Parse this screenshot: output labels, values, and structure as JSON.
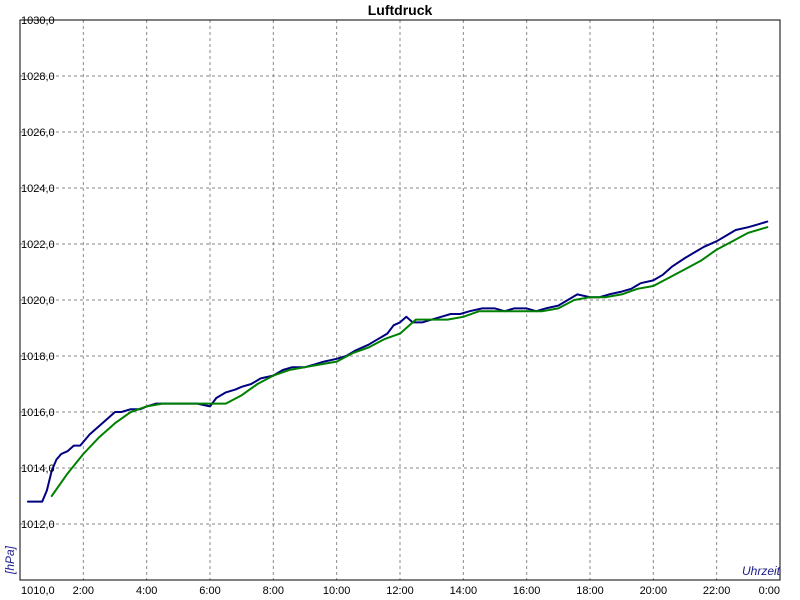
{
  "chart_data": {
    "type": "line",
    "title": "Luftdruck",
    "xlabel": "Uhrzeit",
    "ylabel": "[hPa]",
    "x_unit": "hours",
    "xlim": [
      0,
      24
    ],
    "ylim": [
      1010,
      1030
    ],
    "grid": true,
    "grid_style": "dashed",
    "x_ticks": [
      {
        "value": 2,
        "label": "2:00"
      },
      {
        "value": 4,
        "label": "4:00"
      },
      {
        "value": 6,
        "label": "6:00"
      },
      {
        "value": 8,
        "label": "8:00"
      },
      {
        "value": 10,
        "label": "10:00"
      },
      {
        "value": 12,
        "label": "12:00"
      },
      {
        "value": 14,
        "label": "14:00"
      },
      {
        "value": 16,
        "label": "16:00"
      },
      {
        "value": 18,
        "label": "18:00"
      },
      {
        "value": 20,
        "label": "20:00"
      },
      {
        "value": 22,
        "label": "22:00"
      },
      {
        "value": 24,
        "label": "0:00"
      }
    ],
    "y_ticks": [
      {
        "value": 1010,
        "label": "1010,0"
      },
      {
        "value": 1012,
        "label": "1012,0"
      },
      {
        "value": 1014,
        "label": "1014,0"
      },
      {
        "value": 1016,
        "label": "1016,0"
      },
      {
        "value": 1018,
        "label": "1018,0"
      },
      {
        "value": 1020,
        "label": "1020,0"
      },
      {
        "value": 1022,
        "label": "1022,0"
      },
      {
        "value": 1024,
        "label": "1024,0"
      },
      {
        "value": 1026,
        "label": "1026,0"
      },
      {
        "value": 1028,
        "label": "1028,0"
      },
      {
        "value": 1030,
        "label": "1030,0"
      }
    ],
    "series": [
      {
        "color": "#000080",
        "x": [
          0.25,
          0.7,
          0.85,
          1.0,
          1.15,
          1.3,
          1.5,
          1.7,
          1.9,
          2.2,
          2.5,
          2.8,
          3.0,
          3.2,
          3.5,
          3.8,
          4.0,
          4.3,
          4.6,
          5.0,
          5.3,
          5.6,
          6.0,
          6.2,
          6.5,
          6.8,
          7.0,
          7.3,
          7.6,
          8.0,
          8.3,
          8.6,
          9.0,
          9.3,
          9.6,
          10.0,
          10.3,
          10.6,
          11.0,
          11.3,
          11.6,
          11.8,
          12.0,
          12.2,
          12.4,
          12.7,
          13.0,
          13.3,
          13.6,
          13.9,
          14.2,
          14.6,
          15.0,
          15.3,
          15.6,
          16.0,
          16.3,
          16.6,
          17.0,
          17.3,
          17.6,
          18.0,
          18.3,
          18.6,
          19.0,
          19.3,
          19.6,
          20.0,
          20.3,
          20.6,
          21.0,
          21.3,
          21.6,
          22.0,
          22.3,
          22.6,
          23.0,
          23.3,
          23.6
        ],
        "y": [
          1012.8,
          1012.8,
          1013.2,
          1013.9,
          1014.3,
          1014.5,
          1014.6,
          1014.8,
          1014.8,
          1015.2,
          1015.5,
          1015.8,
          1016.0,
          1016.0,
          1016.1,
          1016.1,
          1016.2,
          1016.3,
          1016.3,
          1016.3,
          1016.3,
          1016.3,
          1016.2,
          1016.5,
          1016.7,
          1016.8,
          1016.9,
          1017.0,
          1017.2,
          1017.3,
          1017.5,
          1017.6,
          1017.6,
          1017.7,
          1017.8,
          1017.9,
          1018.0,
          1018.2,
          1018.4,
          1018.6,
          1018.8,
          1019.1,
          1019.2,
          1019.4,
          1019.2,
          1019.2,
          1019.3,
          1019.4,
          1019.5,
          1019.5,
          1019.6,
          1019.7,
          1019.7,
          1019.6,
          1019.7,
          1019.7,
          1019.6,
          1019.7,
          1019.8,
          1020.0,
          1020.2,
          1020.1,
          1020.1,
          1020.2,
          1020.3,
          1020.4,
          1020.6,
          1020.7,
          1020.9,
          1021.2,
          1021.5,
          1021.7,
          1021.9,
          1022.1,
          1022.3,
          1022.5,
          1022.6,
          1022.7,
          1022.8
        ]
      },
      {
        "color": "#008000",
        "x": [
          1.0,
          1.5,
          2.0,
          2.5,
          3.0,
          3.5,
          4.0,
          4.5,
          5.0,
          5.5,
          6.0,
          6.5,
          7.0,
          7.5,
          8.0,
          8.5,
          9.0,
          9.5,
          10.0,
          10.5,
          11.0,
          11.5,
          12.0,
          12.5,
          13.0,
          13.5,
          14.0,
          14.5,
          15.0,
          15.5,
          16.0,
          16.5,
          17.0,
          17.5,
          18.0,
          18.5,
          19.0,
          19.5,
          20.0,
          20.5,
          21.0,
          21.5,
          22.0,
          22.5,
          23.0,
          23.6
        ],
        "y": [
          1013.0,
          1013.8,
          1014.5,
          1015.1,
          1015.6,
          1016.0,
          1016.2,
          1016.3,
          1016.3,
          1016.3,
          1016.3,
          1016.3,
          1016.6,
          1017.0,
          1017.3,
          1017.5,
          1017.6,
          1017.7,
          1017.8,
          1018.1,
          1018.3,
          1018.6,
          1018.8,
          1019.3,
          1019.3,
          1019.3,
          1019.4,
          1019.6,
          1019.6,
          1019.6,
          1019.6,
          1019.6,
          1019.7,
          1020.0,
          1020.1,
          1020.1,
          1020.2,
          1020.4,
          1020.5,
          1020.8,
          1021.1,
          1021.4,
          1021.8,
          1022.1,
          1022.4,
          1022.6
        ]
      }
    ]
  }
}
